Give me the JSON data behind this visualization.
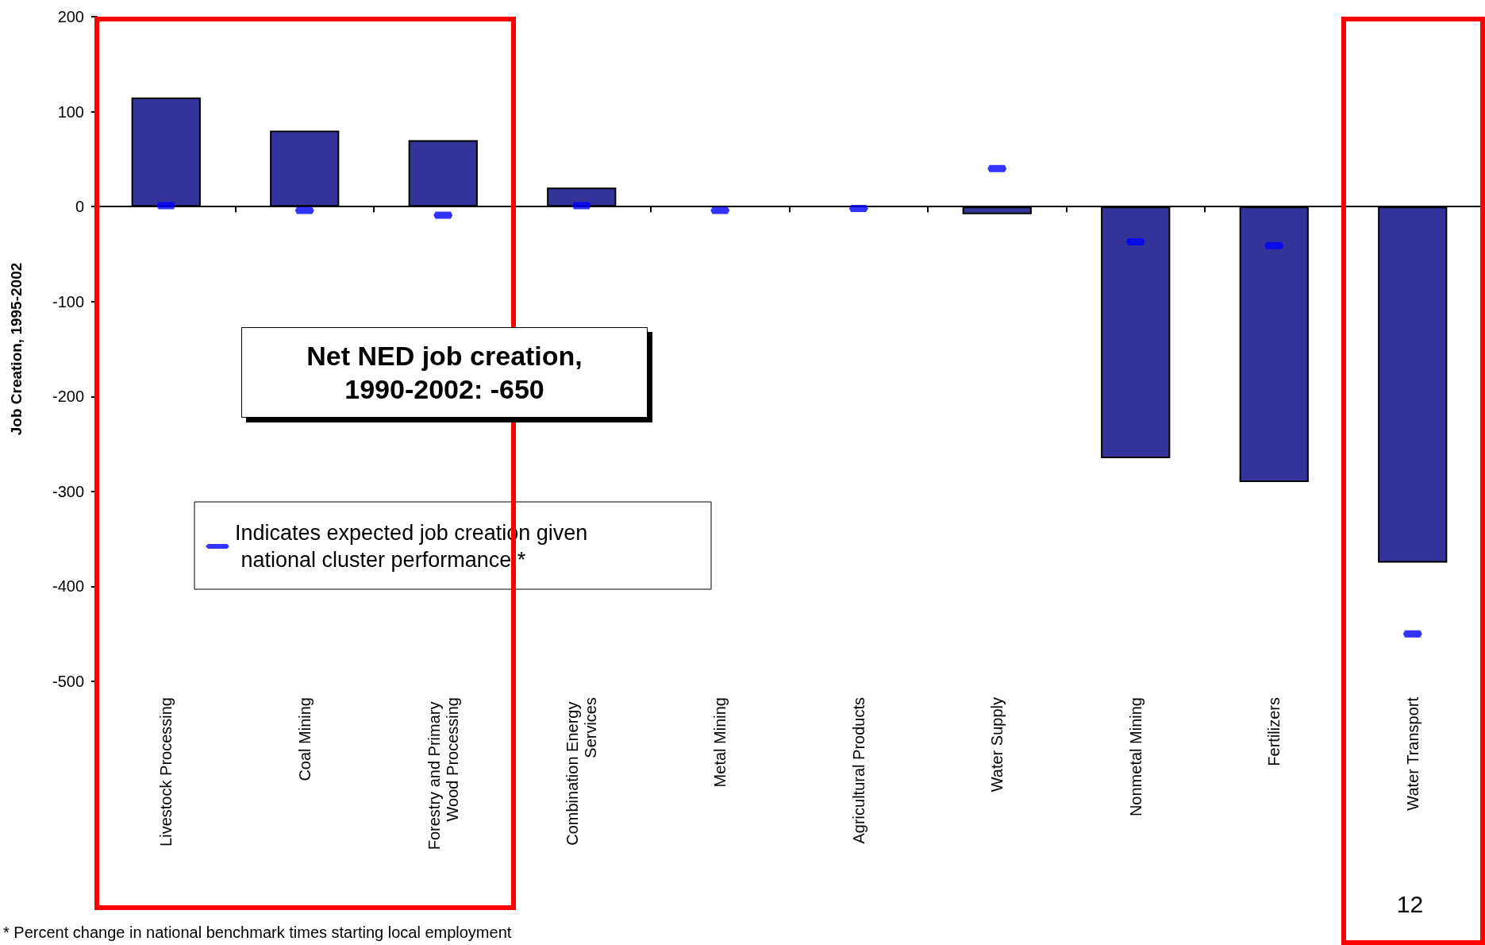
{
  "chart_data": {
    "type": "bar",
    "ylabel": "Job Creation, 1995-2002",
    "categories": [
      "Livestock Processing",
      "Coal Mining",
      "Forestry and Primary Wood Processing",
      "Combination Energy Services",
      "Metal Mining",
      "Agricultural Products",
      "Water Supply",
      "Nonmetal Mining",
      "Fertilizers",
      "Water Transport"
    ],
    "series": [
      {
        "color": "#333399",
        "values": [
          115,
          80,
          70,
          20,
          0,
          0,
          -8,
          -265,
          -290,
          -375
        ]
      },
      {
        "type": "scatter",
        "name": "Indicates expected job creation given national cluster performance.*",
        "color": "#0000ff",
        "x": [
          "Livestock Processing",
          "Coal Mining",
          "Forestry and Primary Wood Processing",
          "Combination Energy Services",
          "Metal Mining",
          "Agricultural Products",
          "Water Supply",
          "Nonmetal Mining",
          "Fertilizers",
          "Water Transport"
        ],
        "values": [
          1,
          -4,
          -9,
          1,
          -4,
          -2,
          40,
          -37,
          -41,
          -450
        ]
      }
    ],
    "ylim": [
      -500,
      200
    ],
    "yticks": [
      -500,
      -400,
      -300,
      -200,
      -100,
      0,
      100,
      200
    ],
    "legend": "bottom left",
    "annotations": [
      "Net NED job creation, 1990-2002: -650",
      "12",
      "* Percent change in national benchmark times starting local employment"
    ]
  }
}
